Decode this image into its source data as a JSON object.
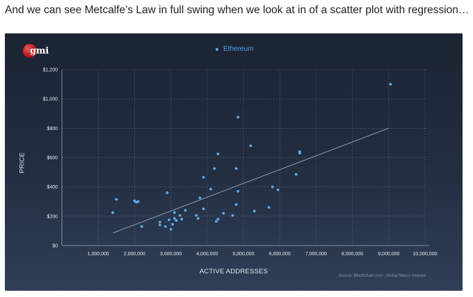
{
  "caption": "And we can see Metcalfe’s Law in full swing when we look at in of a scatter plot with regression…",
  "logo_text": "gmi",
  "source": "Source: Blockchain.com- Global Macro Investor",
  "colors": {
    "background_top": "#1c2433",
    "background_bottom": "#2f3f58",
    "points": "#5aaef0",
    "legend_text": "#4aa3e8",
    "regression": "#9aa7b8",
    "grid": "#56617a"
  },
  "chart_data": {
    "type": "scatter",
    "xlabel": "ACTIVE ADDRESSES",
    "ylabel": "PRICE",
    "xlim": [
      0,
      10000000
    ],
    "ylim": [
      0,
      1200
    ],
    "grid": true,
    "legend_position": "top-center",
    "x_tick_labels": [
      "1,000,000",
      "2,000,000",
      "3,000,000",
      "4,000,000",
      "5,000,000",
      "6,000,000",
      "7,000,000",
      "8,000,000",
      "9,000,000",
      "10,000,000"
    ],
    "x_ticks": [
      1000000,
      2000000,
      3000000,
      4000000,
      5000000,
      6000000,
      7000000,
      8000000,
      9000000,
      10000000
    ],
    "y_tick_labels": [
      "$0",
      "$200",
      "$400",
      "$600",
      "$800",
      "$1,000",
      "$1,200"
    ],
    "y_ticks": [
      0,
      200,
      400,
      600,
      800,
      1000,
      1200
    ],
    "series": [
      {
        "name": "Ethereum",
        "points": [
          [
            1400000,
            225
          ],
          [
            1500000,
            315
          ],
          [
            2000000,
            305
          ],
          [
            2100000,
            300
          ],
          [
            2050000,
            295
          ],
          [
            2200000,
            130
          ],
          [
            2700000,
            140
          ],
          [
            2700000,
            160
          ],
          [
            2850000,
            130
          ],
          [
            2900000,
            360
          ],
          [
            2950000,
            175
          ],
          [
            3000000,
            110
          ],
          [
            3050000,
            145
          ],
          [
            3100000,
            225
          ],
          [
            3100000,
            185
          ],
          [
            3150000,
            170
          ],
          [
            3250000,
            205
          ],
          [
            3300000,
            180
          ],
          [
            3400000,
            240
          ],
          [
            3700000,
            205
          ],
          [
            3750000,
            185
          ],
          [
            3800000,
            325
          ],
          [
            3900000,
            250
          ],
          [
            3900000,
            465
          ],
          [
            4100000,
            385
          ],
          [
            4200000,
            525
          ],
          [
            4250000,
            165
          ],
          [
            4300000,
            180
          ],
          [
            4300000,
            625
          ],
          [
            4450000,
            220
          ],
          [
            4700000,
            205
          ],
          [
            4800000,
            280
          ],
          [
            4800000,
            525
          ],
          [
            4850000,
            370
          ],
          [
            4850000,
            875
          ],
          [
            5200000,
            680
          ],
          [
            5300000,
            235
          ],
          [
            5700000,
            260
          ],
          [
            5800000,
            400
          ],
          [
            5950000,
            380
          ],
          [
            6450000,
            485
          ],
          [
            6550000,
            630
          ],
          [
            6550000,
            640
          ],
          [
            9050000,
            1100
          ]
        ]
      }
    ],
    "regression": {
      "x": [
        1400000,
        9000000
      ],
      "y": [
        85,
        800
      ]
    }
  }
}
